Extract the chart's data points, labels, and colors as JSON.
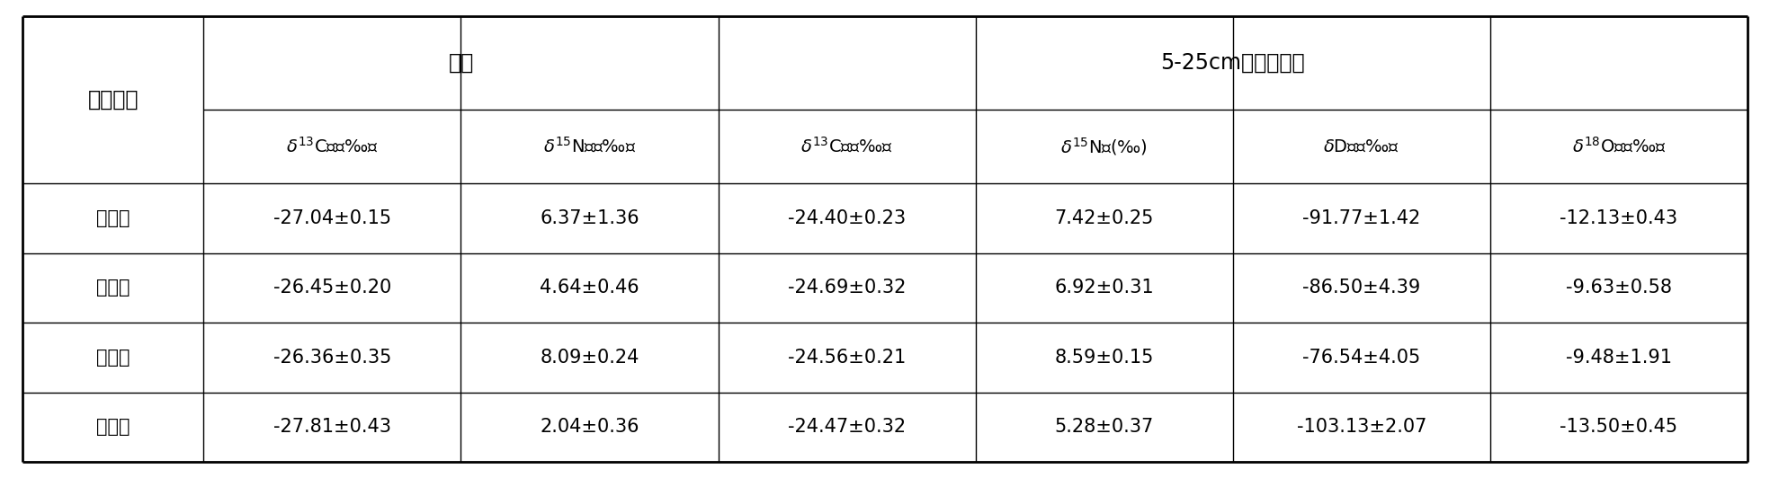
{
  "group_headers": [
    "叶片",
    "5-25cm深度的土壤"
  ],
  "sampling_label": "采样地区",
  "sub_headers": [
    "$\\delta^{13}$C值（‰）",
    "$\\delta^{15}$N值（‰）",
    "$\\delta^{13}$C值（‰）",
    "$\\delta^{15}$N值(‰)",
    "$\\delta$D值（‰）",
    "$\\delta^{18}$O值（‰）"
  ],
  "rows": [
    [
      "哈尔滨",
      "-27.04±0.15",
      "6.37±1.36",
      "-24.40±0.23",
      "7.42±0.25",
      "-91.77±1.42",
      "-12.13±0.43"
    ],
    [
      "牡丹江",
      "-26.45±0.20",
      "4.64±0.46",
      "-24.69±0.32",
      "6.92±0.31",
      "-86.50±4.39",
      "-9.63±0.58"
    ],
    [
      "昌吉市",
      "-26.36±0.35",
      "8.09±0.24",
      "-24.56±0.21",
      "8.59±0.15",
      "-76.54±4.05",
      "-9.48±1.91"
    ],
    [
      "塔城市",
      "-27.81±0.43",
      "2.04±0.36",
      "-24.47±0.32",
      "5.28±0.37",
      "-103.13±2.07",
      "-13.50±0.45"
    ]
  ],
  "background_color": "#ffffff",
  "line_color": "#000000",
  "text_color": "#000000",
  "border_lw": 2.0,
  "inner_lw": 1.0,
  "fig_width": 19.68,
  "fig_height": 5.32,
  "dpi": 100
}
